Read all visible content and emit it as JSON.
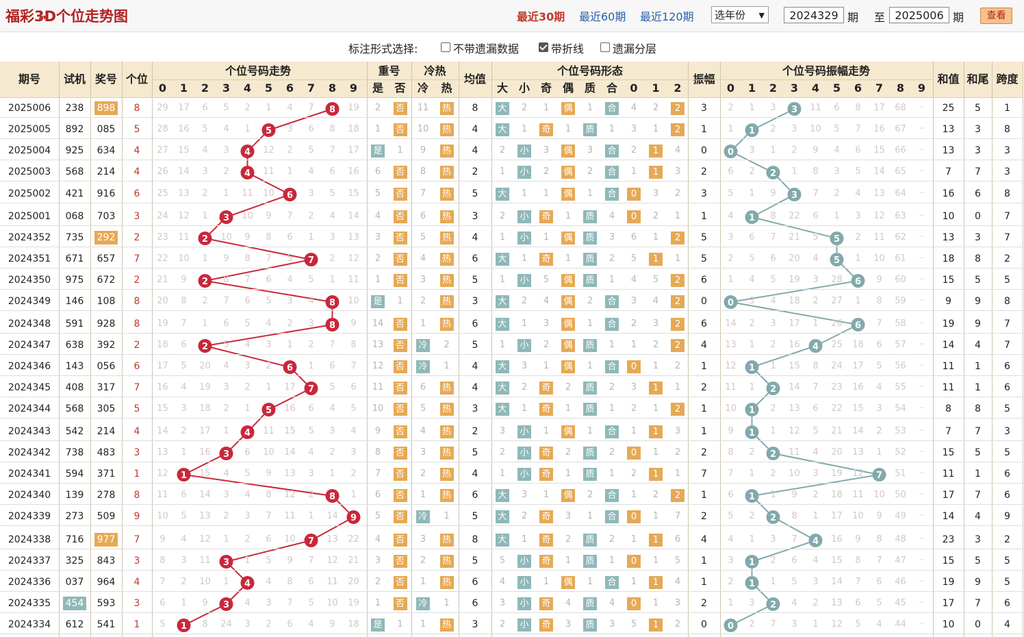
{
  "title": "福彩3D个位走势图",
  "ranges": [
    "最近30期",
    "最近60期",
    "最近120期"
  ],
  "year_select": "选年份",
  "from_value": "2024329",
  "to_value": "2025006",
  "lbl_qi": "期",
  "lbl_zhi": "至",
  "view_label": "查看",
  "options": {
    "label": "标注形式选择:",
    "o1": "不带遗漏数据",
    "o2": "带折线",
    "o3": "遗漏分层"
  },
  "headers": {
    "period": "期号",
    "sort": "▲▼",
    "trial": "试机",
    "prize": "奖号",
    "unit": "个位",
    "trend": "个位号码走势",
    "repeat": "重号",
    "shi": "是",
    "fou": "否",
    "coldhot": "冷热",
    "cold": "冷",
    "hot": "热",
    "avg": "均值",
    "form": "个位号码形态",
    "big": "大",
    "small": "小",
    "odd": "奇",
    "even": "偶",
    "prime": "质",
    "comp": "合",
    "amp": "振幅",
    "amptrend": "个位号码振幅走势",
    "sum": "和值",
    "sumtail": "和尾",
    "span": "跨度",
    "digits": [
      "0",
      "1",
      "2",
      "3",
      "4",
      "5",
      "6",
      "7",
      "8",
      "9"
    ],
    "r012": [
      "0",
      "1",
      "2"
    ]
  },
  "rows": [
    {
      "p": "2025006",
      "t": "238",
      "z": "898",
      "u": 8,
      "zh": 0,
      "rep": "2",
      "ch": "11",
      "avg": "8",
      "bs": "2",
      "oe": "1",
      "pc": "1",
      "r": [
        4,
        2,
        "2"
      ],
      "amp": 3,
      "am": [
        "2",
        "1",
        "3",
        "3",
        "11",
        "6",
        "8",
        "17",
        "68",
        "··"
      ],
      "sum": "25",
      "st": "5",
      "sp": "1",
      "m": [
        "29",
        "17",
        "6",
        "5",
        "2",
        "1",
        "4",
        "7",
        "8",
        "19"
      ],
      "tz": true
    },
    {
      "p": "2025005",
      "t": "892",
      "z": "085",
      "u": 5,
      "zh": 0,
      "rep": "1",
      "ch": "10",
      "avg": "4",
      "bs": "1",
      "oe": "1",
      "pc": "1",
      "r": [
        3,
        1,
        "2"
      ],
      "amp": 1,
      "am": [
        "1",
        "1",
        "2",
        "3",
        "10",
        "5",
        "7",
        "16",
        "67",
        "··"
      ],
      "sum": "13",
      "st": "3",
      "sp": "8",
      "m": [
        "28",
        "16",
        "5",
        "4",
        "1",
        "5",
        "3",
        "6",
        "8",
        "18"
      ]
    },
    {
      "p": "2025004",
      "t": "925",
      "z": "634",
      "u": 4,
      "zh": 1,
      "rep": "1",
      "ch": "9",
      "avg": "4",
      "bs": "2",
      "oe": "3",
      "pc": "3",
      "r": [
        2,
        "1",
        4
      ],
      "amp": 0,
      "am": [
        "0",
        "3",
        "1",
        "2",
        "9",
        "4",
        "6",
        "15",
        "66",
        "··"
      ],
      "sum": "13",
      "st": "3",
      "sp": "3",
      "m": [
        "27",
        "15",
        "4",
        "3",
        "4",
        "12",
        "2",
        "5",
        "7",
        "17"
      ]
    },
    {
      "p": "2025003",
      "t": "568",
      "z": "214",
      "u": 4,
      "zh": 0,
      "rep": "6",
      "ch": "8",
      "avg": "2",
      "bs": "1",
      "oe": "2",
      "pc": "2",
      "r": [
        1,
        "1",
        3
      ],
      "amp": 2,
      "am": [
        "6",
        "2",
        "2",
        "1",
        "8",
        "3",
        "5",
        "14",
        "65",
        "··"
      ],
      "sum": "7",
      "st": "7",
      "sp": "3",
      "m": [
        "26",
        "14",
        "3",
        "2",
        "4",
        "11",
        "1",
        "4",
        "6",
        "16"
      ]
    },
    {
      "p": "2025002",
      "t": "421",
      "z": "916",
      "u": 6,
      "zh": 0,
      "rep": "5",
      "ch": "7",
      "avg": "5",
      "bs": "1",
      "oe": "1",
      "pc": "1",
      "r": [
        "0",
        3,
        2
      ],
      "amp": 3,
      "am": [
        "5",
        "1",
        "9",
        "3",
        "7",
        "2",
        "4",
        "13",
        "64",
        "··"
      ],
      "sum": "16",
      "st": "6",
      "sp": "8",
      "m": [
        "25",
        "13",
        "2",
        "1",
        "11",
        "10",
        "6",
        "3",
        "5",
        "15"
      ]
    },
    {
      "p": "2025001",
      "t": "068",
      "z": "703",
      "u": 3,
      "zh": 0,
      "rep": "4",
      "ch": "6",
      "avg": "3",
      "bs": "2",
      "oe": "1",
      "pc": "4",
      "r": [
        "0",
        2,
        1
      ],
      "amp": 1,
      "am": [
        "4",
        "1",
        "8",
        "22",
        "6",
        "1",
        "3",
        "12",
        "63",
        "··"
      ],
      "sum": "10",
      "st": "0",
      "sp": "7",
      "m": [
        "24",
        "12",
        "1",
        "3",
        "10",
        "9",
        "7",
        "2",
        "4",
        "14"
      ]
    },
    {
      "p": "2024352",
      "t": "735",
      "z": "292",
      "u": 2,
      "zh": 0,
      "rep": "3",
      "ch": "5",
      "avg": "4",
      "bs": "1",
      "oe": "1",
      "pc": "3",
      "r": [
        6,
        1,
        "2"
      ],
      "amp": 5,
      "am": [
        "3",
        "6",
        "7",
        "21",
        "5",
        "5",
        "2",
        "11",
        "62",
        "··"
      ],
      "sum": "13",
      "st": "3",
      "sp": "7",
      "m": [
        "23",
        "11",
        "2",
        "10",
        "9",
        "8",
        "6",
        "1",
        "3",
        "13"
      ],
      "zo": true
    },
    {
      "p": "2024351",
      "t": "671",
      "z": "657",
      "u": 7,
      "zh": 0,
      "rep": "2",
      "ch": "4",
      "avg": "6",
      "bs": "1",
      "oe": "1",
      "pc": "2",
      "r": [
        5,
        "1",
        1
      ],
      "amp": 5,
      "am": [
        "2",
        "5",
        "6",
        "20",
        "4",
        "5",
        "1",
        "10",
        "61",
        "··"
      ],
      "sum": "18",
      "st": "8",
      "sp": "2",
      "m": [
        "22",
        "10",
        "1",
        "9",
        "8",
        "7",
        "5",
        "7",
        "2",
        "12"
      ]
    },
    {
      "p": "2024350",
      "t": "975",
      "z": "672",
      "u": 2,
      "zh": 0,
      "rep": "1",
      "ch": "3",
      "avg": "5",
      "bs": "1",
      "oe": "5",
      "pc": "1",
      "r": [
        4,
        5,
        "2"
      ],
      "amp": 6,
      "am": [
        "1",
        "4",
        "5",
        "19",
        "3",
        "28",
        "6",
        "9",
        "60",
        "··"
      ],
      "sum": "15",
      "st": "5",
      "sp": "5",
      "m": [
        "21",
        "9",
        "2",
        "8",
        "7",
        "6",
        "4",
        "5",
        "1",
        "11"
      ]
    },
    {
      "p": "2024349",
      "t": "146",
      "z": "108",
      "u": 8,
      "zh": 1,
      "rep": "1",
      "ch": "2",
      "avg": "3",
      "bs": "2",
      "oe": "4",
      "pc": "2",
      "r": [
        3,
        4,
        "2"
      ],
      "amp": 0,
      "am": [
        "0",
        "3",
        "4",
        "18",
        "2",
        "27",
        "1",
        "8",
        "59",
        "··"
      ],
      "sum": "9",
      "st": "9",
      "sp": "8",
      "m": [
        "20",
        "8",
        "2",
        "7",
        "6",
        "5",
        "3",
        "4",
        "8",
        "10"
      ]
    },
    {
      "p": "2024348",
      "t": "591",
      "z": "928",
      "u": 8,
      "zh": 0,
      "rep": "14",
      "ch": "1",
      "avg": "6",
      "bs": "1",
      "oe": "3",
      "pc": "1",
      "r": [
        2,
        3,
        "2"
      ],
      "amp": 6,
      "am": [
        "14",
        "2",
        "3",
        "17",
        "1",
        "26",
        "6",
        "7",
        "58",
        "··"
      ],
      "sum": "19",
      "st": "9",
      "sp": "7",
      "m": [
        "19",
        "7",
        "1",
        "6",
        "5",
        "4",
        "2",
        "3",
        "8",
        "9"
      ]
    },
    {
      "p": "2024347",
      "t": "638",
      "z": "392",
      "u": 2,
      "zh": 0,
      "rep": "13",
      "ch": "2",
      "cold": 1,
      "avg": "5",
      "bs": "1",
      "oe": "2",
      "pc": "1",
      "r": [
        1,
        2,
        "2"
      ],
      "amp": 4,
      "am": [
        "13",
        "1",
        "2",
        "16",
        "4",
        "25",
        "18",
        "6",
        "57",
        "··"
      ],
      "sum": "14",
      "st": "4",
      "sp": "7",
      "m": [
        "18",
        "6",
        "2",
        "5",
        "4",
        "3",
        "1",
        "2",
        "7",
        "8"
      ]
    },
    {
      "p": "2024346",
      "t": "143",
      "z": "056",
      "u": 6,
      "zh": 0,
      "rep": "12",
      "ch": "1",
      "cold": 1,
      "avg": "4",
      "bs": "3",
      "oe": "1",
      "pc": "1",
      "r": [
        "0",
        1,
        2
      ],
      "amp": 1,
      "am": [
        "12",
        "1",
        "1",
        "15",
        "8",
        "24",
        "17",
        "5",
        "56",
        "··"
      ],
      "sum": "11",
      "st": "1",
      "sp": "6",
      "m": [
        "17",
        "5",
        "20",
        "4",
        "3",
        "2",
        "6",
        "1",
        "6",
        "7"
      ]
    },
    {
      "p": "2024345",
      "t": "408",
      "z": "317",
      "u": 7,
      "zh": 0,
      "rep": "11",
      "ch": "6",
      "avg": "4",
      "bs": "2",
      "oe": "2",
      "pc": "2",
      "r": [
        3,
        "1",
        1
      ],
      "amp": 2,
      "am": [
        "11",
        "1",
        "2",
        "14",
        "7",
        "23",
        "16",
        "4",
        "55",
        "··"
      ],
      "sum": "11",
      "st": "1",
      "sp": "6",
      "m": [
        "16",
        "4",
        "19",
        "3",
        "2",
        "1",
        "17",
        "7",
        "5",
        "6"
      ]
    },
    {
      "p": "2024344",
      "t": "568",
      "z": "305",
      "u": 5,
      "zh": 0,
      "rep": "10",
      "ch": "5",
      "avg": "3",
      "bs": "1",
      "oe": "1",
      "pc": "1",
      "r": [
        2,
        1,
        "2"
      ],
      "amp": 1,
      "am": [
        "10",
        "1",
        "2",
        "13",
        "6",
        "22",
        "15",
        "3",
        "54",
        "··"
      ],
      "sum": "8",
      "st": "8",
      "sp": "5",
      "m": [
        "15",
        "3",
        "18",
        "2",
        "1",
        "5",
        "16",
        "6",
        "4",
        "5"
      ]
    },
    {
      "p": "2024343",
      "t": "542",
      "z": "214",
      "u": 4,
      "zh": 0,
      "rep": "9",
      "ch": "4",
      "avg": "2",
      "bs": "3",
      "oe": "1",
      "pc": "1",
      "r": [
        1,
        "1",
        3
      ],
      "amp": 1,
      "am": [
        "9",
        "1",
        "1",
        "12",
        "5",
        "21",
        "14",
        "2",
        "53",
        "··"
      ],
      "sum": "7",
      "st": "7",
      "sp": "3",
      "m": [
        "14",
        "2",
        "17",
        "1",
        "4",
        "11",
        "15",
        "5",
        "3",
        "4"
      ]
    },
    {
      "p": "2024342",
      "t": "738",
      "z": "483",
      "u": 3,
      "zh": 0,
      "rep": "8",
      "ch": "3",
      "avg": "5",
      "bs": "2",
      "oe": "2",
      "pc": "2",
      "r": [
        "0",
        1,
        2
      ],
      "amp": 2,
      "am": [
        "8",
        "2",
        "2",
        "11",
        "4",
        "20",
        "13",
        "1",
        "52",
        "··"
      ],
      "sum": "15",
      "st": "5",
      "sp": "5",
      "m": [
        "13",
        "1",
        "16",
        "3",
        "6",
        "10",
        "14",
        "4",
        "2",
        "3"
      ]
    },
    {
      "p": "2024341",
      "t": "594",
      "z": "371",
      "u": 1,
      "zh": 0,
      "rep": "7",
      "ch": "2",
      "avg": "4",
      "bs": "1",
      "oe": "1",
      "pc": "1",
      "r": [
        2,
        "1",
        1
      ],
      "amp": 7,
      "am": [
        "7",
        "1",
        "2",
        "10",
        "3",
        "19",
        "12",
        "7",
        "51",
        "··"
      ],
      "sum": "11",
      "st": "1",
      "sp": "6",
      "m": [
        "12",
        "1",
        "15",
        "4",
        "5",
        "9",
        "13",
        "3",
        "1",
        "2"
      ]
    },
    {
      "p": "2024340",
      "t": "139",
      "z": "278",
      "u": 8,
      "zh": 0,
      "rep": "6",
      "ch": "1",
      "avg": "6",
      "bs": "3",
      "oe": "1",
      "pc": "2",
      "r": [
        1,
        2,
        "2"
      ],
      "amp": 1,
      "am": [
        "6",
        "1",
        "1",
        "9",
        "2",
        "18",
        "11",
        "10",
        "50",
        "··"
      ],
      "sum": "17",
      "st": "7",
      "sp": "6",
      "m": [
        "11",
        "6",
        "14",
        "3",
        "4",
        "8",
        "12",
        "2",
        "8",
        "1"
      ]
    },
    {
      "p": "2024339",
      "t": "273",
      "z": "509",
      "u": 9,
      "zh": 0,
      "rep": "5",
      "ch": "1",
      "cold": 1,
      "avg": "5",
      "bs": "2",
      "oe": "3",
      "pc": "1",
      "r": [
        "0",
        1,
        7
      ],
      "amp": 2,
      "am": [
        "5",
        "2",
        "2",
        "8",
        "1",
        "17",
        "10",
        "9",
        "49",
        "··"
      ],
      "sum": "14",
      "st": "4",
      "sp": "9",
      "m": [
        "10",
        "5",
        "13",
        "2",
        "3",
        "7",
        "11",
        "1",
        "14",
        "9"
      ]
    },
    {
      "p": "2024338",
      "t": "716",
      "z": "977",
      "u": 7,
      "zh": 0,
      "rep": "4",
      "ch": "3",
      "avg": "8",
      "bs": "1",
      "oe": "2",
      "pc": "2",
      "r": [
        1,
        "1",
        6
      ],
      "amp": 4,
      "am": [
        "4",
        "1",
        "3",
        "7",
        "4",
        "16",
        "9",
        "8",
        "48",
        "··"
      ],
      "sum": "23",
      "st": "3",
      "sp": "2",
      "m": [
        "9",
        "4",
        "12",
        "1",
        "2",
        "6",
        "10",
        "7",
        "13",
        "22"
      ],
      "zo": true
    },
    {
      "p": "2024337",
      "t": "325",
      "z": "843",
      "u": 3,
      "zh": 0,
      "rep": "3",
      "ch": "2",
      "avg": "5",
      "bs": "5",
      "oe": "1",
      "pc": "1",
      "r": [
        "0",
        1,
        5
      ],
      "amp": 1,
      "am": [
        "3",
        "1",
        "2",
        "6",
        "4",
        "15",
        "8",
        "7",
        "47",
        "··"
      ],
      "sum": "15",
      "st": "5",
      "sp": "5",
      "m": [
        "8",
        "3",
        "11",
        "3",
        "1",
        "5",
        "9",
        "7",
        "12",
        "21"
      ]
    },
    {
      "p": "2024336",
      "t": "037",
      "z": "964",
      "u": 4,
      "zh": 0,
      "rep": "2",
      "ch": "1",
      "avg": "6",
      "bs": "4",
      "oe": "1",
      "pc": "1",
      "r": [
        1,
        "1",
        4
      ],
      "amp": 1,
      "am": [
        "2",
        "1",
        "1",
        "5",
        "3",
        "14",
        "7",
        "6",
        "46",
        "··"
      ],
      "sum": "19",
      "st": "9",
      "sp": "5",
      "m": [
        "7",
        "2",
        "10",
        "1",
        "4",
        "4",
        "8",
        "6",
        "11",
        "20"
      ]
    },
    {
      "p": "2024335",
      "t": "454",
      "z": "593",
      "u": 3,
      "zh": 0,
      "rep": "1",
      "ch": "1",
      "cold": 1,
      "avg": "6",
      "bs": "3",
      "oe": "4",
      "pc": "4",
      "r": [
        "0",
        1,
        3
      ],
      "amp": 2,
      "am": [
        "1",
        "3",
        "2",
        "4",
        "2",
        "13",
        "6",
        "5",
        "45",
        "··"
      ],
      "sum": "17",
      "st": "7",
      "sp": "6",
      "m": [
        "6",
        "1",
        "9",
        "3",
        "4",
        "3",
        "7",
        "5",
        "10",
        "19"
      ],
      "to": true
    },
    {
      "p": "2024334",
      "t": "612",
      "z": "541",
      "u": 1,
      "zh": 1,
      "rep": "1",
      "ch": "1",
      "avg": "3",
      "bs": "2",
      "oe": "3",
      "pc": "3",
      "r": [
        5,
        "1",
        2
      ],
      "amp": 0,
      "am": [
        "0",
        "2",
        "7",
        "3",
        "1",
        "12",
        "5",
        "4",
        "44",
        "··"
      ],
      "sum": "10",
      "st": "0",
      "sp": "4",
      "m": [
        "5",
        "1",
        "8",
        "24",
        "3",
        "2",
        "6",
        "4",
        "9",
        "18"
      ]
    }
  ],
  "colors": {
    "ball": "#c8283b",
    "trend_line": "#c8283b",
    "amp_ball": "#82a9ab",
    "amp_line": "#82a9ab",
    "orange": "#e6a955",
    "teal": "#8fb8b9",
    "header": "#f5e9cf"
  }
}
